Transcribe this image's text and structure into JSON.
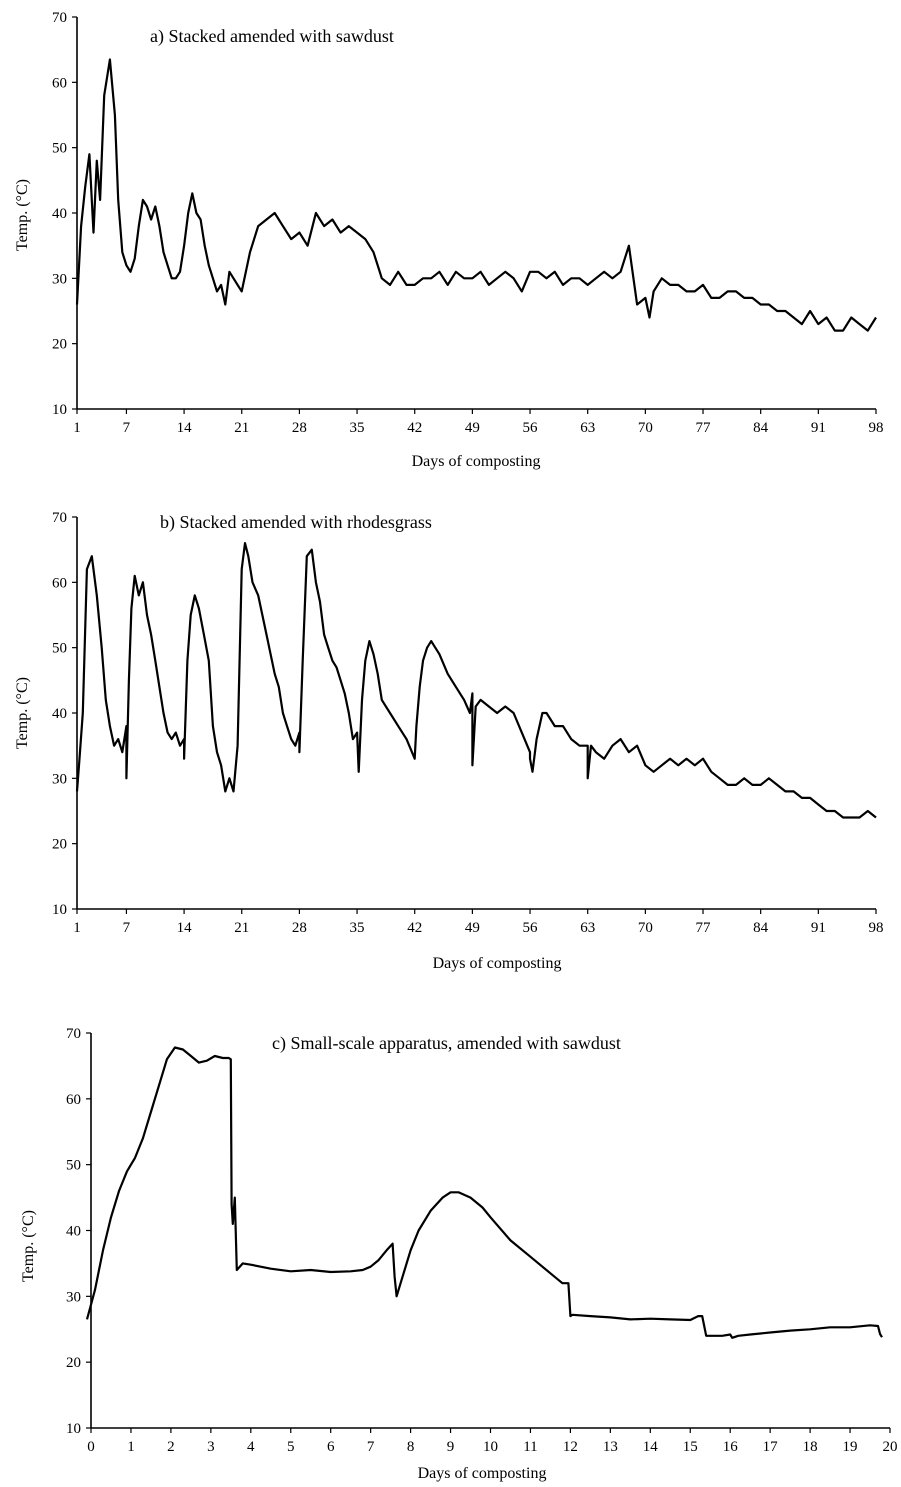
{
  "chart_data": [
    {
      "type": "line",
      "title": "a) Stacked amended with sawdust",
      "xlabel": "Days of composting",
      "ylabel": "Temp. (°C)",
      "xlim": [
        1,
        98
      ],
      "ylim": [
        10,
        70
      ],
      "xticks": [
        "1",
        "7",
        "14",
        "21",
        "28",
        "35",
        "42",
        "49",
        "56",
        "63",
        "70",
        "77",
        "84",
        "91",
        "98"
      ],
      "yticks": [
        "10",
        "20",
        "30",
        "40",
        "50",
        "60",
        "70"
      ],
      "series": [
        {
          "x": [
            1,
            1.5,
            2,
            2.5,
            3,
            3.4,
            3.8,
            4.3,
            5,
            5.6,
            6,
            6.5,
            7,
            7.5,
            8,
            8.5,
            9,
            9.5,
            10,
            10.5,
            11,
            11.5,
            12,
            12.5,
            13,
            13.5,
            14,
            14.5,
            15,
            15.5,
            16,
            16.5,
            17,
            17.5,
            18,
            18.5,
            19,
            19.5,
            20,
            20.5,
            21,
            22,
            23,
            24,
            25,
            26,
            27,
            28,
            29,
            30,
            31,
            32,
            33,
            34,
            35,
            36,
            37,
            38,
            39,
            40,
            41,
            42,
            43,
            44,
            45,
            46,
            47,
            48,
            49,
            50,
            51,
            52,
            53,
            54,
            55,
            56,
            57,
            58,
            59,
            60,
            61,
            62,
            63,
            64,
            65,
            66,
            67,
            68,
            69,
            70,
            70.5,
            71,
            72,
            73,
            74,
            75,
            76,
            77,
            78,
            79,
            80,
            81,
            82,
            83,
            84,
            85,
            86,
            87,
            88,
            89,
            90,
            91,
            92,
            93,
            94,
            95,
            96,
            97,
            98
          ],
          "y": [
            26,
            38,
            44,
            49,
            37,
            48,
            42,
            58,
            63.5,
            55,
            42,
            34,
            32,
            31,
            33,
            38,
            42,
            41,
            39,
            41,
            38,
            34,
            32,
            30,
            30,
            31,
            35,
            40,
            43,
            40,
            39,
            35,
            32,
            30,
            28,
            29,
            26,
            31,
            30,
            29,
            28,
            34,
            38,
            39,
            40,
            38,
            36,
            37,
            35,
            40,
            38,
            39,
            37,
            38,
            37,
            36,
            34,
            30,
            29,
            31,
            29,
            29,
            30,
            30,
            31,
            29,
            31,
            30,
            30,
            31,
            29,
            30,
            31,
            30,
            28,
            31,
            31,
            30,
            31,
            29,
            30,
            30,
            29,
            30,
            31,
            30,
            31,
            35,
            26,
            27,
            24,
            28,
            30,
            29,
            29,
            28,
            28,
            29,
            27,
            27,
            28,
            28,
            27,
            27,
            26,
            26,
            25,
            25,
            24,
            23,
            25,
            23,
            24,
            22,
            22,
            24,
            23,
            22,
            24
          ]
        }
      ]
    },
    {
      "type": "line",
      "title": "b) Stacked amended with rhodesgrass",
      "xlabel": "Days of composting",
      "ylabel": "Temp. (°C)",
      "xlim": [
        1,
        98
      ],
      "ylim": [
        10,
        70
      ],
      "xticks": [
        "1",
        "7",
        "14",
        "21",
        "28",
        "35",
        "42",
        "49",
        "56",
        "63",
        "70",
        "77",
        "84",
        "91",
        "98"
      ],
      "yticks": [
        "10",
        "20",
        "30",
        "40",
        "50",
        "60",
        "70"
      ],
      "series": [
        {
          "x": [
            1,
            1.3,
            1.7,
            2.2,
            2.8,
            3.4,
            4,
            4.5,
            5,
            5.5,
            6,
            6.5,
            7,
            7,
            7.3,
            7.6,
            8,
            8.5,
            9,
            9.5,
            10,
            10.5,
            11,
            11.5,
            12,
            12.5,
            13,
            13.5,
            14,
            14,
            14.4,
            14.8,
            15.3,
            15.8,
            16.4,
            17,
            17.5,
            18,
            18.5,
            19,
            19.5,
            20,
            20.5,
            21,
            21.4,
            21.8,
            22.3,
            23,
            24,
            25,
            25.5,
            26,
            26.5,
            27,
            27.5,
            28,
            28,
            28.4,
            28.9,
            29.5,
            30,
            30.5,
            31,
            31.5,
            32,
            32.5,
            33,
            33.5,
            34,
            34.5,
            35,
            35.2,
            35.6,
            36,
            36.5,
            37,
            37.5,
            38,
            39,
            40,
            41,
            42,
            42.2,
            42.6,
            43,
            43.5,
            44,
            44.5,
            45,
            46,
            47,
            48,
            48.7,
            49,
            49,
            49.4,
            50,
            51,
            52,
            53,
            54,
            55,
            56,
            56,
            56.3,
            56.8,
            57.5,
            58,
            59,
            60,
            61,
            62,
            63,
            63,
            63.4,
            64,
            65,
            66,
            67,
            68,
            69,
            70,
            71,
            72,
            73,
            74,
            75,
            76,
            77,
            78,
            79,
            80,
            81,
            82,
            83,
            84,
            85,
            86,
            87,
            88,
            89,
            90,
            91,
            92,
            93,
            94,
            95,
            96,
            97,
            98
          ],
          "y": [
            28,
            33,
            40,
            62,
            64,
            58,
            50,
            42,
            38,
            35,
            36,
            34,
            38,
            30,
            45,
            56,
            61,
            58,
            60,
            55,
            52,
            48,
            44,
            40,
            37,
            36,
            37,
            35,
            36,
            33,
            48,
            55,
            58,
            56,
            52,
            48,
            38,
            34,
            32,
            28,
            30,
            28,
            35,
            62,
            66,
            64,
            60,
            58,
            52,
            46,
            44,
            40,
            38,
            36,
            35,
            37,
            34,
            48,
            64,
            65,
            60,
            57,
            52,
            50,
            48,
            47,
            45,
            43,
            40,
            36,
            37,
            31,
            42,
            48,
            51,
            49,
            46,
            42,
            40,
            38,
            36,
            33,
            38,
            44,
            48,
            50,
            51,
            50,
            49,
            46,
            44,
            42,
            40,
            43,
            32,
            41,
            42,
            41,
            40,
            41,
            40,
            37,
            34,
            33,
            31,
            36,
            40,
            40,
            38,
            38,
            36,
            35,
            35,
            30,
            35,
            34,
            33,
            35,
            36,
            34,
            35,
            32,
            31,
            32,
            33,
            32,
            33,
            32,
            33,
            31,
            30,
            29,
            29,
            30,
            29,
            29,
            30,
            29,
            28,
            28,
            27,
            27,
            26,
            25,
            25,
            24,
            24,
            24,
            25,
            24
          ]
        }
      ]
    },
    {
      "type": "line",
      "title": "c) Small-scale apparatus, amended with sawdust",
      "xlabel": "Days of composting",
      "ylabel": "Temp. (°C)",
      "xlim": [
        0,
        20
      ],
      "ylim": [
        10,
        70
      ],
      "xticks": [
        "0",
        "1",
        "2",
        "3",
        "4",
        "5",
        "6",
        "7",
        "8",
        "9",
        "10",
        "11",
        "12",
        "13",
        "14",
        "15",
        "16",
        "17",
        "18",
        "19",
        "20"
      ],
      "yticks": [
        "10",
        "20",
        "30",
        "40",
        "50",
        "60",
        "70"
      ],
      "series": [
        {
          "x": [
            -0.1,
            0.1,
            0.3,
            0.5,
            0.7,
            0.9,
            1.1,
            1.3,
            1.5,
            1.7,
            1.9,
            2.1,
            2.3,
            2.5,
            2.7,
            2.9,
            3.1,
            3.3,
            3.45,
            3.5,
            3.52,
            3.55,
            3.6,
            3.65,
            3.8,
            4,
            4.5,
            5,
            5.5,
            6,
            6.5,
            6.8,
            7,
            7.2,
            7.4,
            7.55,
            7.6,
            7.65,
            7.8,
            8,
            8.2,
            8.5,
            8.8,
            9,
            9.2,
            9.5,
            9.8,
            10,
            10.5,
            11,
            11.5,
            11.8,
            11.95,
            12,
            12.05,
            12.5,
            13,
            13.5,
            14,
            14.5,
            15,
            15.2,
            15.3,
            15.4,
            15.8,
            16,
            16.05,
            16.2,
            16.5,
            17,
            17.5,
            18,
            18.5,
            19,
            19.5,
            19.7,
            19.75,
            19.8
          ],
          "y": [
            26.5,
            31,
            37,
            42,
            46,
            49,
            51,
            54,
            58,
            62,
            66,
            67.8,
            67.5,
            66.5,
            65.5,
            65.8,
            66.5,
            66.2,
            66.2,
            66,
            44,
            41,
            45,
            34,
            35,
            34.8,
            34.2,
            33.8,
            34,
            33.7,
            33.8,
            34,
            34.5,
            35.5,
            37,
            38,
            33,
            30,
            33,
            37,
            40,
            43,
            45,
            45.8,
            45.8,
            45,
            43.5,
            42,
            38.5,
            36,
            33.5,
            32,
            32,
            27,
            27.2,
            27,
            26.8,
            26.5,
            26.6,
            26.5,
            26.4,
            27,
            27,
            24,
            24,
            24.2,
            23.7,
            24,
            24.2,
            24.5,
            24.8,
            25,
            25.3,
            25.3,
            25.6,
            25.5,
            24.3,
            23.8
          ]
        }
      ]
    }
  ]
}
